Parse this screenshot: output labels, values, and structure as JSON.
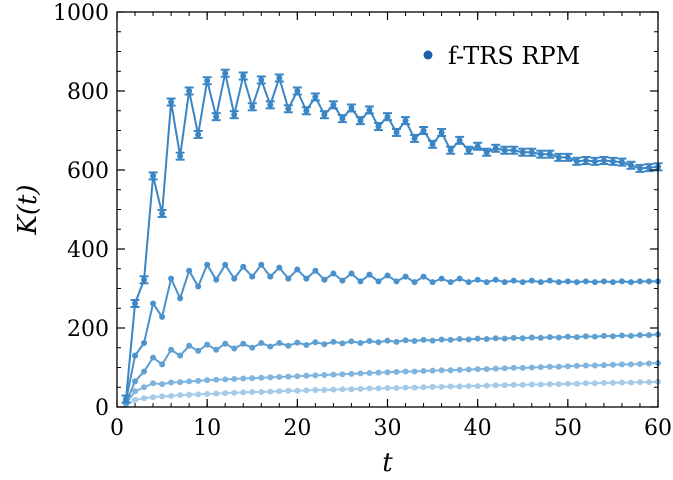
{
  "chart_data": {
    "type": "line",
    "xlabel": "t",
    "ylabel": "K(t)",
    "xlim": [
      0,
      60
    ],
    "ylim": [
      0,
      1000
    ],
    "xticks": [
      "0",
      "10",
      "20",
      "30",
      "40",
      "50",
      "60"
    ],
    "yticks": [
      "0",
      "200",
      "400",
      "600",
      "800",
      "1000"
    ],
    "legend": {
      "label": "f-TRS RPM",
      "position": "top-right",
      "marker_color": "#1f5fa8"
    },
    "grid": false,
    "x": [
      1,
      2,
      3,
      4,
      5,
      6,
      7,
      8,
      9,
      10,
      11,
      12,
      13,
      14,
      15,
      16,
      17,
      18,
      19,
      20,
      21,
      22,
      23,
      24,
      25,
      26,
      27,
      28,
      29,
      30,
      31,
      32,
      33,
      34,
      35,
      36,
      37,
      38,
      39,
      40,
      41,
      42,
      43,
      44,
      45,
      46,
      47,
      48,
      49,
      50,
      51,
      52,
      53,
      54,
      55,
      56,
      57,
      58,
      59,
      60
    ],
    "series": [
      {
        "color": "#3a85c4",
        "errorbars": true,
        "values": [
          20,
          262,
          322,
          585,
          490,
          772,
          635,
          800,
          690,
          826,
          735,
          845,
          740,
          838,
          760,
          828,
          765,
          833,
          755,
          800,
          750,
          785,
          740,
          765,
          730,
          757,
          725,
          752,
          710,
          735,
          695,
          725,
          680,
          700,
          665,
          695,
          650,
          675,
          650,
          660,
          645,
          655,
          650,
          650,
          645,
          645,
          640,
          640,
          632,
          632,
          622,
          624,
          622,
          624,
          622,
          620,
          612,
          604,
          606,
          608
        ]
      },
      {
        "color": "#4891cc",
        "errorbars": false,
        "values": [
          15,
          130,
          162,
          262,
          228,
          325,
          275,
          345,
          305,
          360,
          322,
          360,
          325,
          355,
          330,
          360,
          330,
          353,
          325,
          348,
          325,
          345,
          322,
          338,
          320,
          338,
          318,
          335,
          318,
          333,
          318,
          330,
          316,
          330,
          316,
          325,
          316,
          325,
          316,
          322,
          316,
          322,
          316,
          320,
          316,
          320,
          316,
          320,
          316,
          318,
          316,
          318,
          316,
          318,
          316,
          318,
          316,
          318,
          318,
          318
        ]
      },
      {
        "color": "#5e9fd2",
        "errorbars": false,
        "values": [
          10,
          65,
          90,
          125,
          108,
          145,
          130,
          155,
          142,
          158,
          145,
          160,
          148,
          160,
          150,
          162,
          153,
          162,
          155,
          163,
          157,
          164,
          159,
          165,
          161,
          166,
          162,
          167,
          164,
          168,
          165,
          169,
          167,
          170,
          168,
          171,
          170,
          172,
          171,
          173,
          172,
          174,
          173,
          175,
          174,
          176,
          175,
          177,
          176,
          178,
          177,
          179,
          178,
          180,
          179,
          181,
          180,
          182,
          182,
          184
        ]
      },
      {
        "color": "#7fb4de",
        "errorbars": false,
        "values": [
          8,
          40,
          50,
          60,
          58,
          62,
          63,
          65,
          66,
          68,
          69,
          70,
          71,
          72,
          73,
          74,
          75,
          76,
          77,
          78,
          79,
          80,
          81,
          82,
          83,
          84,
          85,
          86,
          87,
          88,
          89,
          90,
          90,
          91,
          92,
          93,
          93,
          94,
          95,
          96,
          96,
          97,
          98,
          99,
          99,
          100,
          101,
          102,
          102,
          103,
          104,
          105,
          105,
          106,
          107,
          108,
          108,
          109,
          110,
          111
        ]
      },
      {
        "color": "#a5cbe8",
        "errorbars": false,
        "values": [
          5,
          18,
          22,
          25,
          27,
          28,
          30,
          31,
          32,
          33,
          34,
          35,
          36,
          37,
          38,
          38,
          39,
          40,
          41,
          41,
          42,
          43,
          43,
          44,
          45,
          45,
          46,
          47,
          47,
          48,
          48,
          49,
          49,
          50,
          51,
          51,
          52,
          52,
          53,
          53,
          54,
          55,
          55,
          56,
          56,
          57,
          57,
          58,
          58,
          59,
          59,
          60,
          60,
          61,
          61,
          62,
          62,
          63,
          63,
          64
        ]
      }
    ]
  }
}
